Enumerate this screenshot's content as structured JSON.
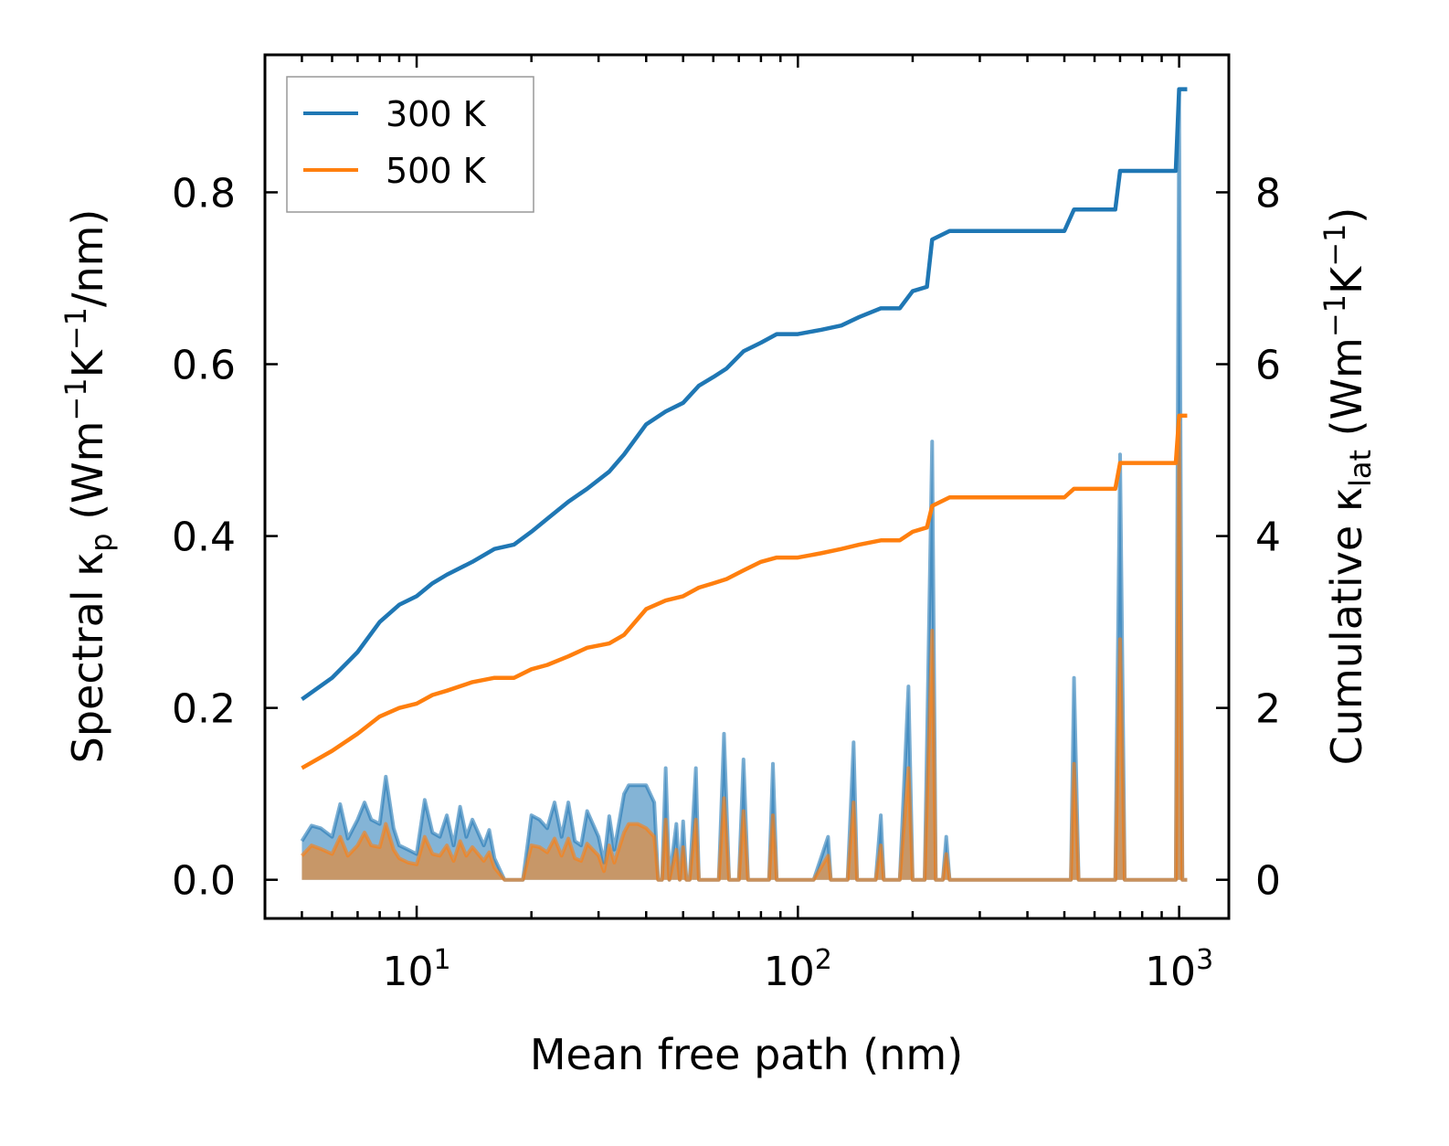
{
  "chart_data": {
    "type": "line",
    "x_scale": "log",
    "xlim": [
      4,
      1350
    ],
    "ylim_left": [
      -0.045,
      0.96
    ],
    "ylim_right": [
      -0.45,
      9.6
    ],
    "grid": false,
    "legend_position": "top-left",
    "xlabel": "Mean free path (nm)",
    "ylabel_left": {
      "main": "Spectral κ",
      "sub": "p",
      "tail": " (Wm",
      "sup1": "−1",
      "mid": "K",
      "sup2": "−1",
      "end": "/nm)"
    },
    "ylabel_right": {
      "main": "Cumulative κ",
      "sub": "lat",
      "tail": " (Wm",
      "sup1": "−1",
      "mid": "K",
      "sup2": "−1",
      "end": ")"
    },
    "x_ticks": [
      {
        "value": 10,
        "base": "10",
        "exp": "1"
      },
      {
        "value": 100,
        "base": "10",
        "exp": "2"
      },
      {
        "value": 1000,
        "base": "10",
        "exp": "3"
      }
    ],
    "y_ticks_left": [
      {
        "value": 0,
        "label": "0.0"
      },
      {
        "value": 0.2,
        "label": "0.2"
      },
      {
        "value": 0.4,
        "label": "0.4"
      },
      {
        "value": 0.6,
        "label": "0.6"
      },
      {
        "value": 0.8,
        "label": "0.8"
      }
    ],
    "y_ticks_right": [
      {
        "value": 0,
        "label": "0"
      },
      {
        "value": 2,
        "label": "2"
      },
      {
        "value": 4,
        "label": "4"
      },
      {
        "value": 6,
        "label": "6"
      },
      {
        "value": 8,
        "label": "8"
      }
    ],
    "series": [
      {
        "name": "300 K",
        "color": "#1f77b4",
        "cumulative": [
          [
            5,
            2.1
          ],
          [
            6,
            2.35
          ],
          [
            7,
            2.65
          ],
          [
            8,
            3.0
          ],
          [
            9,
            3.2
          ],
          [
            10,
            3.3
          ],
          [
            11,
            3.45
          ],
          [
            12,
            3.55
          ],
          [
            14,
            3.7
          ],
          [
            16,
            3.85
          ],
          [
            18,
            3.9
          ],
          [
            20,
            4.05
          ],
          [
            22,
            4.2
          ],
          [
            25,
            4.4
          ],
          [
            28,
            4.55
          ],
          [
            32,
            4.75
          ],
          [
            35,
            4.95
          ],
          [
            40,
            5.3
          ],
          [
            45,
            5.45
          ],
          [
            50,
            5.55
          ],
          [
            55,
            5.75
          ],
          [
            60,
            5.85
          ],
          [
            65,
            5.95
          ],
          [
            72,
            6.15
          ],
          [
            80,
            6.25
          ],
          [
            88,
            6.35
          ],
          [
            100,
            6.35
          ],
          [
            115,
            6.4
          ],
          [
            130,
            6.45
          ],
          [
            145,
            6.55
          ],
          [
            165,
            6.65
          ],
          [
            185,
            6.65
          ],
          [
            200,
            6.85
          ],
          [
            218,
            6.9
          ],
          [
            225,
            7.45
          ],
          [
            250,
            7.55
          ],
          [
            300,
            7.55
          ],
          [
            400,
            7.55
          ],
          [
            500,
            7.55
          ],
          [
            530,
            7.8
          ],
          [
            600,
            7.8
          ],
          [
            680,
            7.8
          ],
          [
            700,
            8.25
          ],
          [
            800,
            8.25
          ],
          [
            980,
            8.25
          ],
          [
            1000,
            9.2
          ],
          [
            1050,
            9.2
          ]
        ],
        "spectral": [
          [
            5,
            0.045
          ],
          [
            5.3,
            0.063
          ],
          [
            5.6,
            0.06
          ],
          [
            6,
            0.05
          ],
          [
            6.3,
            0.088
          ],
          [
            6.6,
            0.048
          ],
          [
            7,
            0.07
          ],
          [
            7.3,
            0.09
          ],
          [
            7.6,
            0.07
          ],
          [
            8,
            0.065
          ],
          [
            8.3,
            0.12
          ],
          [
            8.7,
            0.06
          ],
          [
            9,
            0.04
          ],
          [
            9.5,
            0.035
          ],
          [
            10,
            0.03
          ],
          [
            10.5,
            0.093
          ],
          [
            11,
            0.055
          ],
          [
            11.5,
            0.05
          ],
          [
            12,
            0.075
          ],
          [
            12.5,
            0.04
          ],
          [
            13,
            0.085
          ],
          [
            13.5,
            0.05
          ],
          [
            14,
            0.07
          ],
          [
            15,
            0.04
          ],
          [
            15.5,
            0.058
          ],
          [
            16,
            0.025
          ],
          [
            17,
            0.0
          ],
          [
            18,
            0.0
          ],
          [
            19,
            0.0
          ],
          [
            20,
            0.075
          ],
          [
            21,
            0.07
          ],
          [
            22,
            0.06
          ],
          [
            23,
            0.09
          ],
          [
            24,
            0.05
          ],
          [
            25,
            0.09
          ],
          [
            26,
            0.045
          ],
          [
            27,
            0.04
          ],
          [
            28,
            0.08
          ],
          [
            30,
            0.05
          ],
          [
            31,
            0.02
          ],
          [
            32,
            0.074
          ],
          [
            33,
            0.035
          ],
          [
            35,
            0.1
          ],
          [
            36,
            0.11
          ],
          [
            38,
            0.11
          ],
          [
            40,
            0.11
          ],
          [
            42,
            0.09
          ],
          [
            43,
            0.0
          ],
          [
            44,
            0.0
          ],
          [
            45,
            0.13
          ],
          [
            46,
            0.0
          ],
          [
            48,
            0.065
          ],
          [
            49,
            0.0
          ],
          [
            50,
            0.068
          ],
          [
            51,
            0.0
          ],
          [
            52,
            0.0
          ],
          [
            54,
            0.13
          ],
          [
            55,
            0.0
          ],
          [
            56,
            0.0
          ],
          [
            60,
            0.0
          ],
          [
            62,
            0.0
          ],
          [
            64,
            0.17
          ],
          [
            66,
            0.0
          ],
          [
            68,
            0.0
          ],
          [
            70,
            0.0
          ],
          [
            72,
            0.14
          ],
          [
            74,
            0.0
          ],
          [
            76,
            0.0
          ],
          [
            80,
            0.0
          ],
          [
            84,
            0.0
          ],
          [
            86,
            0.135
          ],
          [
            88,
            0.0
          ],
          [
            90,
            0.0
          ],
          [
            100,
            0.0
          ],
          [
            110,
            0.0
          ],
          [
            120,
            0.05
          ],
          [
            122,
            0.0
          ],
          [
            135,
            0.0
          ],
          [
            140,
            0.16
          ],
          [
            143,
            0.0
          ],
          [
            150,
            0.0
          ],
          [
            160,
            0.0
          ],
          [
            165,
            0.075
          ],
          [
            168,
            0.0
          ],
          [
            185,
            0.0
          ],
          [
            195,
            0.225
          ],
          [
            200,
            0.0
          ],
          [
            215,
            0.0
          ],
          [
            225,
            0.51
          ],
          [
            230,
            0.0
          ],
          [
            240,
            0.0
          ],
          [
            245,
            0.05
          ],
          [
            250,
            0.0
          ],
          [
            300,
            0.0
          ],
          [
            400,
            0.0
          ],
          [
            500,
            0.0
          ],
          [
            520,
            0.0
          ],
          [
            530,
            0.235
          ],
          [
            545,
            0.0
          ],
          [
            600,
            0.0
          ],
          [
            680,
            0.0
          ],
          [
            700,
            0.495
          ],
          [
            720,
            0.0
          ],
          [
            800,
            0.0
          ],
          [
            980,
            0.0
          ],
          [
            1000,
            0.915
          ],
          [
            1020,
            0.0
          ],
          [
            1050,
            0.0
          ]
        ]
      },
      {
        "name": "500 K",
        "color": "#ff7f0e",
        "cumulative": [
          [
            5,
            1.3
          ],
          [
            6,
            1.5
          ],
          [
            7,
            1.7
          ],
          [
            8,
            1.9
          ],
          [
            9,
            2.0
          ],
          [
            10,
            2.05
          ],
          [
            11,
            2.15
          ],
          [
            12,
            2.2
          ],
          [
            14,
            2.3
          ],
          [
            16,
            2.35
          ],
          [
            18,
            2.35
          ],
          [
            20,
            2.45
          ],
          [
            22,
            2.5
          ],
          [
            25,
            2.6
          ],
          [
            28,
            2.7
          ],
          [
            32,
            2.75
          ],
          [
            35,
            2.85
          ],
          [
            40,
            3.15
          ],
          [
            45,
            3.25
          ],
          [
            50,
            3.3
          ],
          [
            55,
            3.4
          ],
          [
            60,
            3.45
          ],
          [
            65,
            3.5
          ],
          [
            72,
            3.6
          ],
          [
            80,
            3.7
          ],
          [
            88,
            3.75
          ],
          [
            100,
            3.75
          ],
          [
            115,
            3.8
          ],
          [
            130,
            3.85
          ],
          [
            145,
            3.9
          ],
          [
            165,
            3.95
          ],
          [
            185,
            3.95
          ],
          [
            200,
            4.05
          ],
          [
            218,
            4.1
          ],
          [
            225,
            4.35
          ],
          [
            250,
            4.45
          ],
          [
            300,
            4.45
          ],
          [
            400,
            4.45
          ],
          [
            500,
            4.45
          ],
          [
            530,
            4.55
          ],
          [
            600,
            4.55
          ],
          [
            680,
            4.55
          ],
          [
            700,
            4.85
          ],
          [
            800,
            4.85
          ],
          [
            980,
            4.85
          ],
          [
            1000,
            5.4
          ],
          [
            1050,
            5.4
          ]
        ],
        "spectral": [
          [
            5,
            0.028
          ],
          [
            5.3,
            0.04
          ],
          [
            5.6,
            0.036
          ],
          [
            6,
            0.03
          ],
          [
            6.3,
            0.05
          ],
          [
            6.6,
            0.028
          ],
          [
            7,
            0.04
          ],
          [
            7.3,
            0.055
          ],
          [
            7.6,
            0.04
          ],
          [
            8,
            0.038
          ],
          [
            8.3,
            0.065
          ],
          [
            8.7,
            0.035
          ],
          [
            9,
            0.025
          ],
          [
            9.5,
            0.02
          ],
          [
            10,
            0.018
          ],
          [
            10.5,
            0.05
          ],
          [
            11,
            0.03
          ],
          [
            11.5,
            0.028
          ],
          [
            12,
            0.04
          ],
          [
            12.5,
            0.022
          ],
          [
            13,
            0.045
          ],
          [
            13.5,
            0.028
          ],
          [
            14,
            0.038
          ],
          [
            15,
            0.022
          ],
          [
            15.5,
            0.032
          ],
          [
            16,
            0.014
          ],
          [
            17,
            0.0
          ],
          [
            18,
            0.0
          ],
          [
            19,
            0.0
          ],
          [
            20,
            0.04
          ],
          [
            21,
            0.038
          ],
          [
            22,
            0.032
          ],
          [
            23,
            0.048
          ],
          [
            24,
            0.028
          ],
          [
            25,
            0.048
          ],
          [
            26,
            0.025
          ],
          [
            27,
            0.022
          ],
          [
            28,
            0.042
          ],
          [
            30,
            0.028
          ],
          [
            31,
            0.01
          ],
          [
            32,
            0.04
          ],
          [
            33,
            0.02
          ],
          [
            35,
            0.055
          ],
          [
            36,
            0.065
          ],
          [
            38,
            0.065
          ],
          [
            40,
            0.06
          ],
          [
            42,
            0.05
          ],
          [
            43,
            0.0
          ],
          [
            44,
            0.0
          ],
          [
            45,
            0.07
          ],
          [
            46,
            0.0
          ],
          [
            48,
            0.035
          ],
          [
            49,
            0.0
          ],
          [
            50,
            0.038
          ],
          [
            51,
            0.0
          ],
          [
            52,
            0.0
          ],
          [
            54,
            0.07
          ],
          [
            55,
            0.0
          ],
          [
            56,
            0.0
          ],
          [
            60,
            0.0
          ],
          [
            62,
            0.0
          ],
          [
            64,
            0.095
          ],
          [
            66,
            0.0
          ],
          [
            68,
            0.0
          ],
          [
            70,
            0.0
          ],
          [
            72,
            0.08
          ],
          [
            74,
            0.0
          ],
          [
            76,
            0.0
          ],
          [
            80,
            0.0
          ],
          [
            84,
            0.0
          ],
          [
            86,
            0.075
          ],
          [
            88,
            0.0
          ],
          [
            90,
            0.0
          ],
          [
            100,
            0.0
          ],
          [
            110,
            0.0
          ],
          [
            120,
            0.028
          ],
          [
            122,
            0.0
          ],
          [
            135,
            0.0
          ],
          [
            140,
            0.09
          ],
          [
            143,
            0.0
          ],
          [
            150,
            0.0
          ],
          [
            160,
            0.0
          ],
          [
            165,
            0.04
          ],
          [
            168,
            0.0
          ],
          [
            185,
            0.0
          ],
          [
            195,
            0.13
          ],
          [
            200,
            0.0
          ],
          [
            215,
            0.0
          ],
          [
            225,
            0.29
          ],
          [
            230,
            0.0
          ],
          [
            240,
            0.0
          ],
          [
            245,
            0.03
          ],
          [
            250,
            0.0
          ],
          [
            300,
            0.0
          ],
          [
            400,
            0.0
          ],
          [
            500,
            0.0
          ],
          [
            520,
            0.0
          ],
          [
            530,
            0.135
          ],
          [
            545,
            0.0
          ],
          [
            600,
            0.0
          ],
          [
            680,
            0.0
          ],
          [
            700,
            0.28
          ],
          [
            720,
            0.0
          ],
          [
            800,
            0.0
          ],
          [
            980,
            0.0
          ],
          [
            1000,
            0.53
          ],
          [
            1020,
            0.0
          ],
          [
            1050,
            0.0
          ]
        ]
      }
    ]
  }
}
